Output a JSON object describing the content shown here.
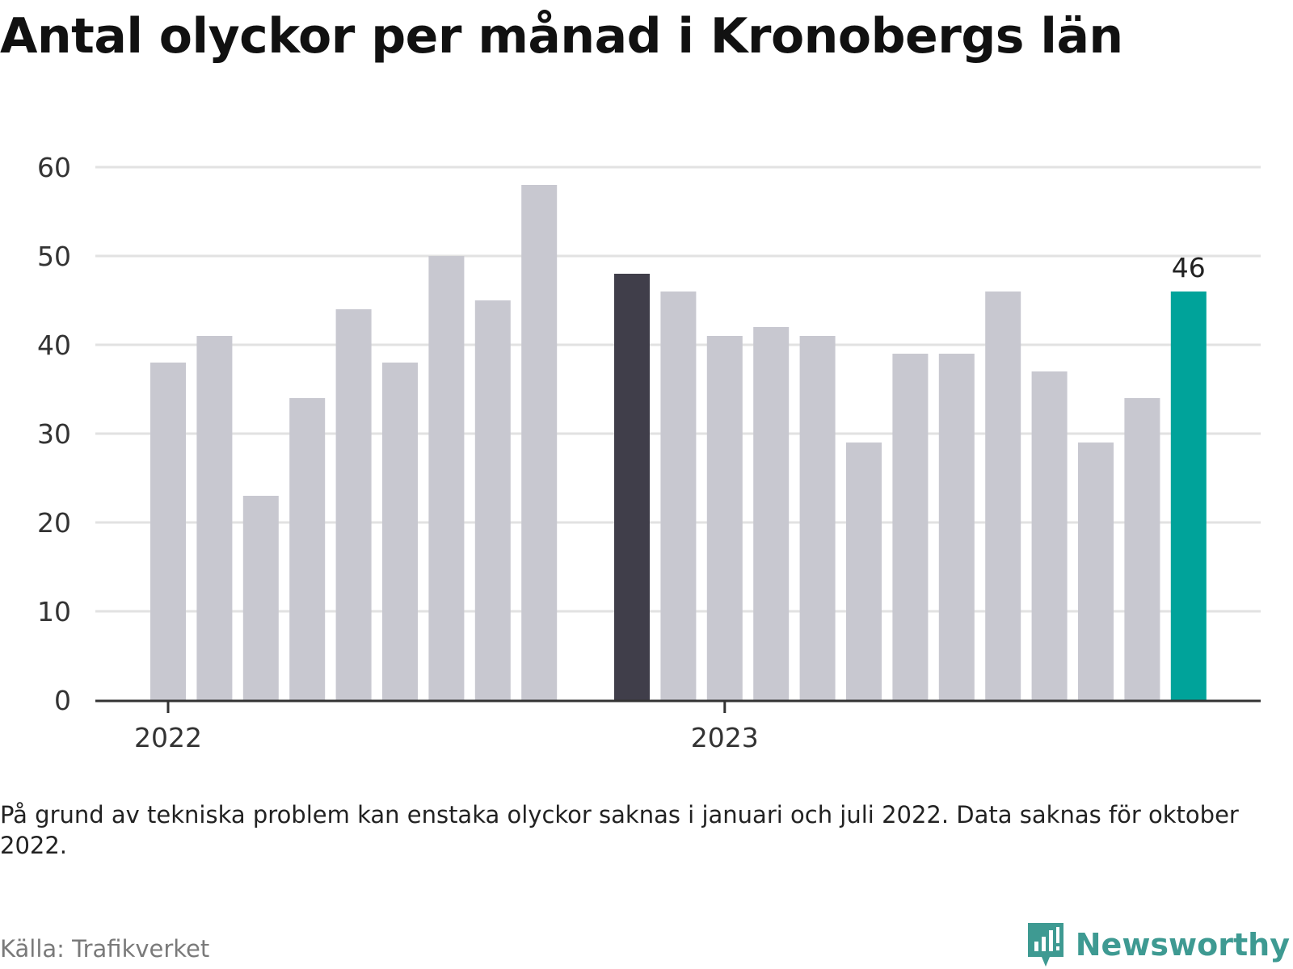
{
  "title": "Antal olyckor per månad i Kronobergs län",
  "note": "På grund av tekniska problem kan enstaka olyckor saknas i januari och juli 2022. Data saknas för oktober 2022.",
  "source": "Källa: Trafikverket",
  "brand": {
    "name": "Newsworthy",
    "icon": "newsworthy-logo-icon"
  },
  "colors": {
    "bar": "#c8c8d0",
    "highlight_prev_year": "#403e4a",
    "highlight_latest": "#00a39a",
    "grid": "#e2e2e2",
    "axis": "#333333",
    "text": "#222222"
  },
  "chart_data": {
    "type": "bar",
    "title": "Antal olyckor per månad i Kronobergs län",
    "xlabel": "",
    "ylabel": "",
    "ylim": [
      0,
      60
    ],
    "yticks": [
      "0",
      "10",
      "20",
      "30",
      "40",
      "50",
      "60"
    ],
    "xticks": [
      "2022",
      "2023"
    ],
    "grid": true,
    "legend": "none",
    "categories": [
      "2022-01",
      "2022-02",
      "2022-03",
      "2022-04",
      "2022-05",
      "2022-06",
      "2022-07",
      "2022-08",
      "2022-09",
      "2022-10",
      "2022-11",
      "2022-12",
      "2023-01",
      "2023-02",
      "2023-03",
      "2023-04",
      "2023-05",
      "2023-06",
      "2023-07",
      "2023-08",
      "2023-09",
      "2023-10",
      "2023-11",
      "2023-12"
    ],
    "values": [
      38,
      41,
      23,
      34,
      44,
      38,
      50,
      45,
      58,
      null,
      48,
      46,
      41,
      42,
      41,
      29,
      39,
      39,
      46,
      37,
      29,
      34,
      46,
      null
    ],
    "highlights": {
      "2022-11": "highlight_prev_year",
      "2023-11": "highlight_latest"
    },
    "data_labels": [
      {
        "category": "2023-11",
        "text": "46"
      }
    ]
  }
}
